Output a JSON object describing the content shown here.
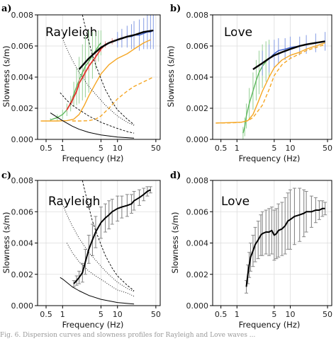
{
  "caption": "Fig. 6. Dispersion curves and slowness profiles for Rayleigh and Love waves ...",
  "colors": {
    "black": "#000000",
    "red": "#e0352b",
    "blue": "#3a5cc9",
    "orange": "#f5a623",
    "green": "#5cb85c",
    "errorbar_green": "#9fd49f",
    "errorbar_blue": "#8fa4e6",
    "errorbar_red": "#e89a9a",
    "errorbar_gray": "#888888"
  },
  "chart_data": [
    {
      "panel": "a)",
      "title": "Rayleigh",
      "type": "line",
      "xlabel": "Frequency (Hz)",
      "ylabel": "Slowness (s/m)",
      "xscale": "log",
      "xlim": [
        0.35,
        60
      ],
      "ylim": [
        0,
        0.008
      ],
      "xticks": [
        0.5,
        1,
        5,
        10,
        50
      ],
      "xticklabels": [
        "0.5",
        "1",
        "5",
        "10",
        "50"
      ],
      "yticks": [
        0,
        0.002,
        0.004,
        0.006,
        0.008
      ],
      "yticklabels": [
        "0.000",
        "0.002",
        "0.004",
        "0.006",
        "0.008"
      ],
      "series": [
        {
          "style": "green-line-errorbars",
          "x": [
            0.6,
            0.8,
            1.0,
            1.2,
            1.4,
            1.6,
            1.8,
            2.0,
            2.3,
            2.6,
            3.0,
            3.5,
            4.0,
            4.5,
            5.0
          ],
          "y": [
            0.00125,
            0.0014,
            0.0016,
            0.0019,
            0.0023,
            0.0029,
            0.0034,
            0.0038,
            0.0043,
            0.0047,
            0.005,
            0.0054,
            0.0057,
            0.006,
            0.0062
          ],
          "err": [
            0.0001,
            0.0002,
            0.0003,
            0.0004,
            0.0005,
            0.0008,
            0.0012,
            0.0015,
            0.0018,
            0.002,
            0.002,
            0.0015,
            0.0012,
            0.001,
            0.0008
          ]
        },
        {
          "style": "red-line-errorbars",
          "x": [
            1.2,
            1.5,
            1.8,
            2.0,
            2.5,
            3.0,
            4.0,
            5.0,
            6.0,
            8.0,
            10.0,
            12.0,
            15.0
          ],
          "y": [
            0.0019,
            0.0025,
            0.0031,
            0.0036,
            0.0042,
            0.0047,
            0.0053,
            0.0058,
            0.0061,
            0.0063,
            0.0064,
            0.0065,
            0.0066
          ],
          "err": [
            0.0001,
            0.0002,
            0.0002,
            0.0003,
            0.0003,
            0.0003,
            0.0003,
            0.0002,
            0.0002,
            0.0002,
            0.0002,
            0.0002,
            0.0002
          ]
        },
        {
          "style": "blue-line-errorbars",
          "x": [
            10,
            12,
            15,
            18,
            20,
            25,
            30,
            35,
            40,
            45
          ],
          "y": [
            0.0064,
            0.0065,
            0.0066,
            0.0066,
            0.0067,
            0.0067,
            0.0068,
            0.0069,
            0.0069,
            0.007
          ],
          "err": [
            0.0005,
            0.0006,
            0.0007,
            0.0008,
            0.0009,
            0.001,
            0.001,
            0.0011,
            0.0011,
            0.0012
          ]
        },
        {
          "style": "black-thick",
          "x": [
            2.0,
            3.0,
            4.0,
            5.0,
            7.0,
            10,
            15,
            20,
            30,
            45
          ],
          "y": [
            0.0045,
            0.0052,
            0.0056,
            0.0059,
            0.0062,
            0.0064,
            0.0066,
            0.0067,
            0.0069,
            0.007
          ]
        },
        {
          "style": "orange-solid",
          "x": [
            0.4,
            0.8,
            1.2,
            1.6,
            2.0,
            2.5,
            3.0,
            4.0,
            5.0,
            7.0,
            10,
            15,
            20,
            30,
            40
          ],
          "y": [
            0.00118,
            0.00118,
            0.0012,
            0.0013,
            0.0016,
            0.0022,
            0.0028,
            0.0036,
            0.0042,
            0.0048,
            0.0052,
            0.0055,
            0.0058,
            0.0062,
            0.0064
          ]
        },
        {
          "style": "orange-dashed",
          "x": [
            1.5,
            2.0,
            3.0,
            4.0,
            5.0,
            7.0,
            10,
            15,
            20,
            30,
            45
          ],
          "y": [
            0.00118,
            0.00118,
            0.0012,
            0.0013,
            0.0015,
            0.002,
            0.0026,
            0.0031,
            0.0034,
            0.0037,
            0.004
          ]
        },
        {
          "style": "black-solid-thin",
          "x": [
            0.6,
            1.0,
            1.5,
            2.0,
            3.0,
            5.0,
            10,
            20
          ],
          "y": [
            0.0017,
            0.0012,
            0.00085,
            0.00065,
            0.00045,
            0.00028,
            0.00015,
            8e-05
          ]
        },
        {
          "style": "black-dashed",
          "x": [
            2.3,
            2.6,
            3.0,
            3.5,
            4.0,
            5.0,
            6.0,
            8.0,
            10,
            15,
            20
          ],
          "y": [
            0.008,
            0.0072,
            0.0063,
            0.0054,
            0.0048,
            0.0039,
            0.0032,
            0.0024,
            0.0019,
            0.0013,
            0.00095
          ]
        },
        {
          "style": "black-dashed",
          "x": [
            0.9,
            1.2,
            1.5,
            2.0,
            3.0,
            5.0,
            7.0,
            10,
            15,
            20
          ],
          "y": [
            0.003,
            0.0025,
            0.0022,
            0.0019,
            0.0015,
            0.0011,
            0.0009,
            0.0007,
            0.0005,
            0.0004
          ]
        },
        {
          "style": "black-dotted",
          "x": [
            1.0,
            1.2,
            1.5,
            2.0,
            3.0,
            4.0,
            6.0,
            8.0,
            10,
            15,
            20
          ],
          "y": [
            0.0065,
            0.0058,
            0.0051,
            0.0043,
            0.0034,
            0.0029,
            0.0022,
            0.0018,
            0.0015,
            0.0011,
            0.0009
          ]
        }
      ]
    },
    {
      "panel": "b)",
      "title": "Love",
      "type": "line",
      "xlabel": "Frequency (Hz)",
      "ylabel": "Slowness (s/m)",
      "xscale": "log",
      "xlim": [
        0.35,
        60
      ],
      "ylim": [
        0,
        0.008
      ],
      "xticks": [
        0.5,
        1,
        5,
        10,
        50
      ],
      "xticklabels": [
        "0.5",
        "1",
        "5",
        "10",
        "50"
      ],
      "yticks": [
        0,
        0.002,
        0.004,
        0.006,
        0.008
      ],
      "yticklabels": [
        "0.000",
        "0.002",
        "0.004",
        "0.006",
        "0.008"
      ],
      "series": [
        {
          "style": "green-line-errorbars",
          "x": [
            1.3,
            1.4,
            1.5,
            1.7,
            2.0,
            2.3,
            2.6,
            3.0,
            3.5,
            4.0
          ],
          "y": [
            0.0004,
            0.0008,
            0.0015,
            0.0023,
            0.0031,
            0.0038,
            0.0043,
            0.0047,
            0.005,
            0.0052
          ],
          "err": [
            0.0004,
            0.0006,
            0.0008,
            0.001,
            0.0012,
            0.0013,
            0.0014,
            0.0014,
            0.0013,
            0.0012
          ]
        },
        {
          "style": "blue-line-errorbars",
          "x": [
            3.0,
            4.0,
            5.0,
            6.0,
            8.0,
            10,
            15,
            20,
            30,
            45
          ],
          "y": [
            0.0049,
            0.0052,
            0.0055,
            0.0057,
            0.0058,
            0.0059,
            0.006,
            0.0061,
            0.0062,
            0.0063
          ],
          "err": [
            0.0008,
            0.0009,
            0.0009,
            0.0008,
            0.0007,
            0.0007,
            0.0006,
            0.0006,
            0.0006,
            0.0006
          ]
        },
        {
          "style": "black-thick",
          "x": [
            2.0,
            3.0,
            4.0,
            5.0,
            7.0,
            10,
            15,
            20,
            30,
            45
          ],
          "y": [
            0.0045,
            0.0049,
            0.0052,
            0.0054,
            0.0056,
            0.0058,
            0.006,
            0.0061,
            0.0062,
            0.0063
          ]
        },
        {
          "style": "orange-solid",
          "x": [
            0.4,
            0.8,
            1.2,
            1.6,
            2.0,
            2.5,
            3.0,
            4.0,
            5.0,
            7.0,
            10,
            15,
            20,
            30,
            45
          ],
          "y": [
            0.00105,
            0.00108,
            0.0011,
            0.0012,
            0.0016,
            0.0024,
            0.0031,
            0.004,
            0.0046,
            0.0051,
            0.0054,
            0.0056,
            0.0058,
            0.006,
            0.0062
          ]
        },
        {
          "style": "orange-dashed",
          "x": [
            0.4,
            0.8,
            1.2,
            1.6,
            2.0,
            3.0,
            4.0,
            5.0,
            7.0,
            10,
            15,
            20,
            30,
            45
          ],
          "y": [
            0.00105,
            0.00106,
            0.0011,
            0.0012,
            0.0014,
            0.0022,
            0.0032,
            0.0041,
            0.0048,
            0.0052,
            0.0055,
            0.0057,
            0.0059,
            0.0061
          ]
        }
      ]
    },
    {
      "panel": "c)",
      "title": "Rayleigh",
      "type": "line",
      "xlabel": "Frequency (Hz)",
      "ylabel": "Slowness (s/m)",
      "xscale": "log",
      "xlim": [
        0.35,
        60
      ],
      "ylim": [
        0,
        0.008
      ],
      "xticks": [
        0.5,
        1,
        5,
        10,
        50
      ],
      "xticklabels": [
        "0.5",
        "1",
        "5",
        "10",
        "50"
      ],
      "yticks": [
        0,
        0.002,
        0.004,
        0.006,
        0.008
      ],
      "yticklabels": [
        "0.000",
        "0.002",
        "0.004",
        "0.006",
        "0.008"
      ],
      "series": [
        {
          "style": "black-line-graybars",
          "x": [
            1.6,
            1.8,
            2.0,
            2.3,
            2.6,
            3.0,
            3.5,
            4.0,
            5.0,
            6.0,
            7.0,
            8.0,
            10,
            12,
            15,
            18,
            20,
            25,
            30,
            35,
            40
          ],
          "y": [
            0.0014,
            0.0016,
            0.0018,
            0.0021,
            0.0028,
            0.0036,
            0.0042,
            0.0047,
            0.0053,
            0.0056,
            0.0058,
            0.006,
            0.0062,
            0.0063,
            0.0064,
            0.0065,
            0.0067,
            0.0069,
            0.0071,
            0.0073,
            0.0074
          ],
          "err": [
            0.0002,
            0.0003,
            0.0004,
            0.0006,
            0.0008,
            0.0009,
            0.001,
            0.001,
            0.001,
            0.0009,
            0.0009,
            0.0008,
            0.0008,
            0.0007,
            0.0007,
            0.0006,
            0.0006,
            0.0005,
            0.0004,
            0.0003,
            0.0002
          ]
        },
        {
          "style": "black-solid-thin",
          "x": [
            0.9,
            1.0,
            1.5,
            2.0,
            3.0,
            5.0,
            10,
            20
          ],
          "y": [
            0.0018,
            0.0017,
            0.0012,
            0.00095,
            0.00065,
            0.0004,
            0.0002,
            0.0001
          ]
        },
        {
          "style": "black-dashed",
          "x": [
            2.3,
            2.6,
            3.0,
            3.5,
            4.0,
            5.0,
            6.0,
            8.0,
            10,
            15,
            20
          ],
          "y": [
            0.008,
            0.0072,
            0.0063,
            0.0054,
            0.0048,
            0.0039,
            0.0032,
            0.0024,
            0.0019,
            0.0013,
            0.00095
          ]
        },
        {
          "style": "black-dotted",
          "x": [
            1.0,
            1.2,
            1.5,
            2.0,
            3.0,
            4.0,
            6.0,
            8.0,
            10,
            15,
            20
          ],
          "y": [
            0.0065,
            0.0058,
            0.0051,
            0.0043,
            0.0034,
            0.0029,
            0.0022,
            0.0018,
            0.0015,
            0.0011,
            0.0009
          ]
        },
        {
          "style": "black-dotted",
          "x": [
            1.2,
            1.5,
            2.0,
            3.0,
            4.0,
            6.0,
            8.0,
            10,
            15,
            20
          ],
          "y": [
            0.004,
            0.0034,
            0.0028,
            0.0022,
            0.0019,
            0.0015,
            0.0012,
            0.001,
            0.0008,
            0.0006
          ]
        }
      ]
    },
    {
      "panel": "d)",
      "title": "Love",
      "type": "line",
      "xlabel": "Frequency (Hz)",
      "ylabel": "Slowness (s/m)",
      "xscale": "log",
      "xlim": [
        0.35,
        60
      ],
      "ylim": [
        0,
        0.008
      ],
      "xticks": [
        0.5,
        1,
        5,
        10,
        50
      ],
      "xticklabels": [
        "0.5",
        "1",
        "5",
        "10",
        "50"
      ],
      "yticks": [
        0,
        0.002,
        0.004,
        0.006,
        0.008
      ],
      "yticklabels": [
        "0.000",
        "0.002",
        "0.004",
        "0.006",
        "0.008"
      ],
      "series": [
        {
          "style": "black-line-graybars",
          "x": [
            1.5,
            1.6,
            1.7,
            1.8,
            2.0,
            2.2,
            2.5,
            2.8,
            3.0,
            3.5,
            4.0,
            4.5,
            5.0,
            5.5,
            6.0,
            7.0,
            8.0,
            9.0,
            10,
            12,
            15,
            18,
            20,
            25,
            30,
            35,
            40,
            45
          ],
          "y": [
            0.0012,
            0.002,
            0.0026,
            0.0031,
            0.0035,
            0.0039,
            0.0042,
            0.0045,
            0.0046,
            0.0047,
            0.0047,
            0.0048,
            0.0045,
            0.0046,
            0.0048,
            0.0049,
            0.0051,
            0.0054,
            0.0055,
            0.0057,
            0.0058,
            0.0059,
            0.006,
            0.006,
            0.0061,
            0.0061,
            0.0062,
            0.0062
          ],
          "err": [
            0.0004,
            0.0006,
            0.0008,
            0.0009,
            0.001,
            0.0011,
            0.0012,
            0.0013,
            0.0014,
            0.0014,
            0.0015,
            0.0015,
            0.0016,
            0.0016,
            0.0017,
            0.0017,
            0.0018,
            0.0018,
            0.0019,
            0.0018,
            0.0017,
            0.0015,
            0.0013,
            0.001,
            0.0008,
            0.0006,
            0.0005,
            0.0004
          ]
        }
      ]
    }
  ]
}
